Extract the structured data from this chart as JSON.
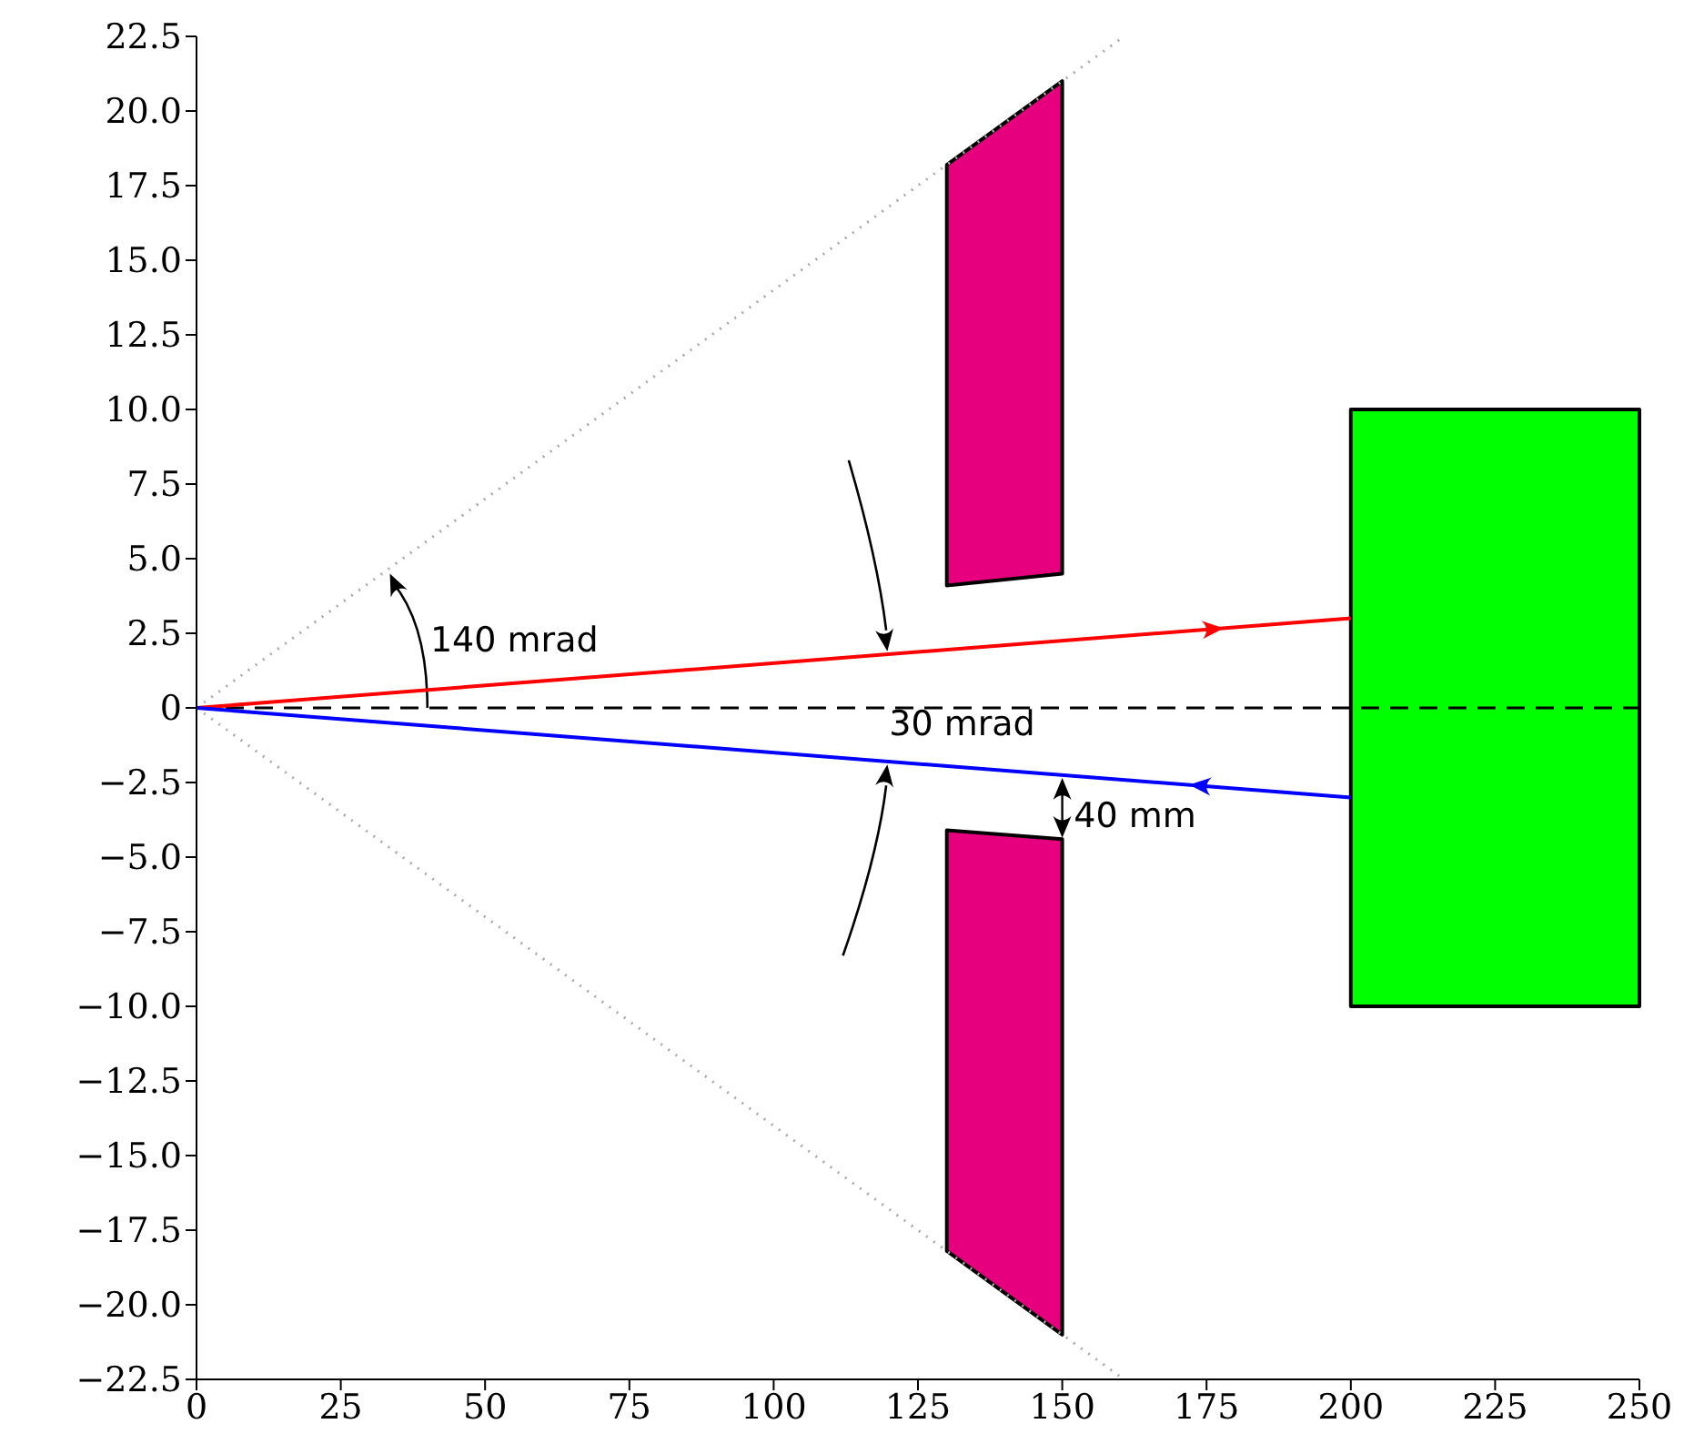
{
  "chart_data": {
    "type": "line",
    "marker": "none",
    "grid": false,
    "legend": false,
    "xlim": [
      0,
      250
    ],
    "xticks": [
      0,
      25,
      50,
      75,
      100,
      125,
      150,
      175,
      200,
      225,
      250
    ],
    "ylim": [
      -22.5,
      22.5
    ],
    "yticks": [
      {
        "value": -22.5,
        "label": "−22.5"
      },
      {
        "value": -20,
        "label": "−20.0"
      },
      {
        "value": -17.5,
        "label": "−17.5"
      },
      {
        "value": -15,
        "label": "−15.0"
      },
      {
        "value": -12.5,
        "label": "−12.5"
      },
      {
        "value": -10,
        "label": "−10.0"
      },
      {
        "value": -7.5,
        "label": "−7.5"
      },
      {
        "value": -5,
        "label": "−5.0"
      },
      {
        "value": -2.5,
        "label": "−2.5"
      },
      {
        "value": 0,
        "label": "0"
      },
      {
        "value": 2.5,
        "label": "2.5"
      },
      {
        "value": 5,
        "label": "5.0"
      },
      {
        "value": 7.5,
        "label": "7.5"
      },
      {
        "value": 10,
        "label": "10.0"
      },
      {
        "value": 12.5,
        "label": "12.5"
      },
      {
        "value": 15,
        "label": "15.0"
      },
      {
        "value": 17.5,
        "label": "17.5"
      },
      {
        "value": 20,
        "label": "20.0"
      },
      {
        "value": 22.5,
        "label": "22.5"
      }
    ],
    "series": [
      {
        "type": "line",
        "color": "#aaaaaa",
        "line_style": "dotted",
        "x": [
          0,
          160
        ],
        "values": [
          0,
          22.4
        ]
      },
      {
        "type": "line",
        "color": "#aaaaaa",
        "line_style": "dotted",
        "x": [
          0,
          160
        ],
        "values": [
          0,
          -22.4
        ]
      },
      {
        "type": "line",
        "color": "#000000",
        "line_style": "dashed",
        "x": [
          0,
          250
        ],
        "values": [
          0,
          0
        ]
      },
      {
        "type": "line",
        "color": "#ff0000",
        "line_style": "solid",
        "x": [
          0,
          200
        ],
        "values": [
          0,
          3
        ]
      },
      {
        "type": "line",
        "color": "#0000ff",
        "line_style": "solid",
        "x": [
          0,
          200
        ],
        "values": [
          0,
          -3
        ]
      }
    ],
    "annotations": [
      "140 mrad",
      "30 mrad",
      "40 mm"
    ]
  }
}
